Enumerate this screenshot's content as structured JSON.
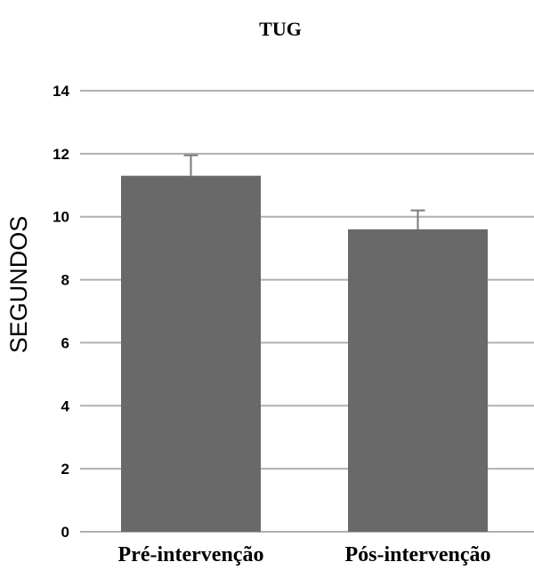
{
  "chart_data": {
    "type": "bar",
    "title": "TUG",
    "xlabel": "",
    "ylabel": "SEGUNDOS",
    "categories": [
      "Pré-intervenção",
      "Pós-intervenção"
    ],
    "values": [
      11.3,
      9.6
    ],
    "error_upper": [
      0.65,
      0.6
    ],
    "ylim": [
      0,
      14
    ],
    "yticks": [
      0,
      2,
      4,
      6,
      8,
      10,
      12,
      14
    ],
    "grid": true,
    "bar_color": "#696969",
    "grid_color": "#b0b0b0",
    "error_color": "#7a7a7a"
  }
}
